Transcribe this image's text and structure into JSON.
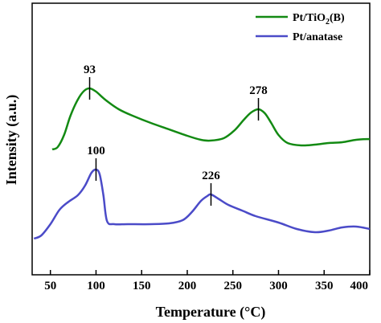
{
  "chart_data": {
    "type": "line",
    "xlabel": "Temperature (°C)",
    "ylabel": "Intensity (a.u.)",
    "xlim": [
      30,
      400
    ],
    "x_ticks": [
      50,
      100,
      150,
      200,
      250,
      300,
      350,
      400
    ],
    "y_ticks_shown": false,
    "legend_position": "top-right",
    "series": [
      {
        "name": "Pt/TiO2(B)",
        "name_display": {
          "prefix": "Pt/TiO",
          "subscript": "2",
          "suffix": "(B)"
        },
        "color": "#138a13",
        "x": [
          52,
          58,
          65,
          72,
          80,
          87,
          93,
          100,
          110,
          125,
          140,
          160,
          180,
          200,
          215,
          225,
          240,
          252,
          262,
          270,
          278,
          285,
          292,
          300,
          310,
          325,
          340,
          355,
          370,
          385,
          400
        ],
        "y": [
          0.0,
          0.03,
          0.18,
          0.42,
          0.62,
          0.73,
          0.76,
          0.72,
          0.62,
          0.5,
          0.42,
          0.33,
          0.25,
          0.17,
          0.12,
          0.11,
          0.14,
          0.24,
          0.37,
          0.46,
          0.5,
          0.45,
          0.33,
          0.18,
          0.08,
          0.05,
          0.06,
          0.08,
          0.09,
          0.12,
          0.13
        ]
      },
      {
        "name": "Pt/anatase",
        "color": "#4b4bc8",
        "x": [
          32,
          40,
          50,
          60,
          70,
          80,
          88,
          95,
          100,
          104,
          108,
          112,
          120,
          135,
          160,
          180,
          195,
          205,
          215,
          222,
          226,
          235,
          245,
          260,
          275,
          300,
          320,
          340,
          355,
          370,
          385,
          400
        ],
        "y": [
          0.0,
          0.04,
          0.18,
          0.36,
          0.46,
          0.54,
          0.66,
          0.82,
          0.86,
          0.8,
          0.55,
          0.22,
          0.18,
          0.18,
          0.18,
          0.19,
          0.23,
          0.33,
          0.47,
          0.53,
          0.55,
          0.49,
          0.42,
          0.35,
          0.28,
          0.2,
          0.12,
          0.08,
          0.1,
          0.14,
          0.15,
          0.12
        ]
      }
    ],
    "annotations": [
      {
        "series": 0,
        "x": 93,
        "y": 0.76,
        "text": "93"
      },
      {
        "series": 0,
        "x": 278,
        "y": 0.5,
        "text": "278"
      },
      {
        "series": 1,
        "x": 100,
        "y": 0.86,
        "text": "100"
      },
      {
        "series": 1,
        "x": 226,
        "y": 0.55,
        "text": "226"
      }
    ]
  }
}
